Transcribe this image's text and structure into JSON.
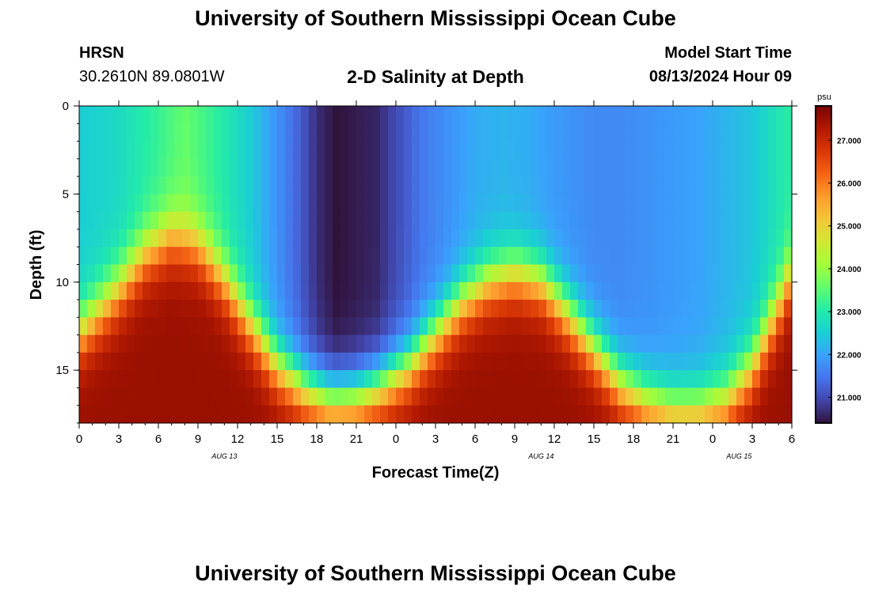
{
  "header": {
    "title": "University of Southern Mississippi Ocean Cube",
    "station": "HRSN",
    "coordinates": "30.2610N  89.0801W",
    "plot_title": "2-D Salinity at Depth",
    "model_start_label": "Model Start Time",
    "model_start_value": "08/13/2024 Hour 09"
  },
  "footer": {
    "title": "University of Southern Mississippi Ocean Cube"
  },
  "chart_data": {
    "type": "heatmap",
    "title": "2-D Salinity at Depth",
    "xlabel": "Forecast Time(Z)",
    "ylabel": "Depth (ft)",
    "x_range_hours": [
      0,
      54
    ],
    "y_range_ft": [
      0,
      18
    ],
    "x_tick_labels": [
      "0",
      "3",
      "6",
      "9",
      "12",
      "15",
      "18",
      "21",
      "0",
      "3",
      "6",
      "9",
      "12",
      "15",
      "18",
      "21",
      "0",
      "3",
      "6"
    ],
    "y_ticks": [
      0,
      5,
      10,
      15
    ],
    "date_labels": [
      {
        "hour": 11,
        "label": "AUG 13"
      },
      {
        "hour": 35,
        "label": "AUG 14"
      },
      {
        "hour": 50,
        "label": "AUG 15"
      }
    ],
    "colorbar": {
      "unit": "psu",
      "min": 20.4,
      "max": 27.8,
      "ticks": [
        "21.000",
        "22.000",
        "23.000",
        "24.000",
        "25.000",
        "26.000",
        "27.000"
      ],
      "colors": [
        "#30123b",
        "#4145ab",
        "#4675ed",
        "#39a2fc",
        "#1bcfd4",
        "#24eca6",
        "#61fc6c",
        "#a4fc3b",
        "#d1e834",
        "#f3c63a",
        "#fe9b2d",
        "#f36315",
        "#d93806",
        "#b11901",
        "#7a0402"
      ]
    },
    "salinity_model": {
      "description": "surface salinity (psu) at each forecast hour and depth (ft) of the fresh/salt interface; bottom ~27.5 psu",
      "surface_hours": [
        0,
        3,
        6,
        8,
        10,
        13,
        15,
        16.5,
        18,
        19.5,
        21,
        22.5,
        24,
        26,
        28,
        30,
        32,
        34,
        36,
        39,
        41,
        43,
        45,
        47,
        49,
        51,
        53,
        54
      ],
      "surface_psu": [
        22.5,
        22.7,
        23.2,
        23.6,
        23.2,
        22.5,
        21.8,
        21.3,
        20.7,
        20.4,
        20.5,
        20.6,
        21.0,
        21.5,
        21.8,
        22.1,
        22.2,
        22.1,
        21.9,
        21.7,
        21.7,
        21.8,
        21.9,
        22.0,
        22.2,
        22.4,
        22.9,
        23.1
      ],
      "interface_hours": [
        0,
        3,
        5,
        7,
        9,
        11,
        13,
        15,
        17,
        19,
        21,
        23,
        25,
        27,
        29,
        31,
        33,
        35,
        37,
        39,
        41,
        43,
        45,
        47,
        49,
        51,
        53,
        54
      ],
      "interface_depth_ft": [
        13.0,
        10.5,
        8.5,
        7.5,
        8.0,
        10.0,
        12.5,
        14.8,
        16.0,
        16.6,
        16.5,
        15.8,
        14.8,
        13.0,
        11.2,
        10.0,
        9.5,
        10.0,
        11.8,
        13.8,
        15.8,
        16.8,
        17.3,
        17.3,
        16.8,
        15.0,
        11.5,
        9.5
      ]
    }
  }
}
